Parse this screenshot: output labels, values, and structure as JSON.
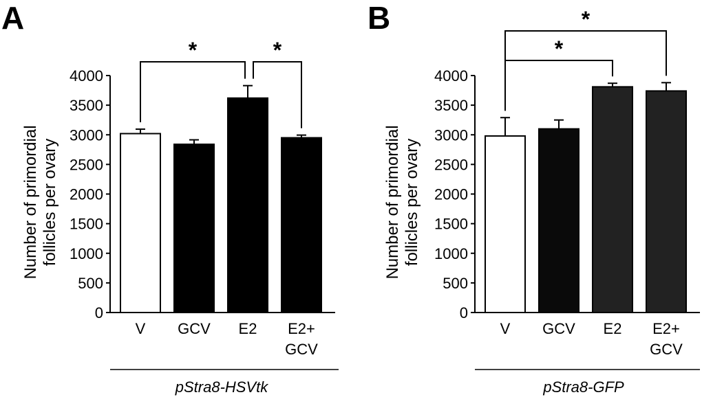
{
  "chart_data": [
    {
      "type": "bar",
      "panel": "A",
      "ylabel": [
        "Number of primordial",
        "follicles per ovary"
      ],
      "ylim": [
        0,
        4000
      ],
      "yticks": [
        0,
        500,
        1000,
        1500,
        2000,
        2500,
        3000,
        3500,
        4000
      ],
      "categories": [
        {
          "label": [
            "V"
          ],
          "value": 3020,
          "error": 75,
          "color": "#ffffff"
        },
        {
          "label": [
            "GCV"
          ],
          "value": 2840,
          "error": 75,
          "color": "#000000"
        },
        {
          "label": [
            "E2"
          ],
          "value": 3620,
          "error": 210,
          "color": "#000000"
        },
        {
          "label": [
            "E2+",
            "GCV"
          ],
          "value": 2950,
          "error": 45,
          "color": "#000000"
        }
      ],
      "genotype": "pStra8-HSVtk",
      "significance": [
        {
          "from": 0,
          "to": 2,
          "label": "*"
        },
        {
          "from": 2,
          "to": 3,
          "label": "*"
        }
      ]
    },
    {
      "type": "bar",
      "panel": "B",
      "ylabel": [
        "Number of primordial",
        "follicles per ovary"
      ],
      "ylim": [
        0,
        4000
      ],
      "yticks": [
        0,
        500,
        1000,
        1500,
        2000,
        2500,
        3000,
        3500,
        4000
      ],
      "categories": [
        {
          "label": [
            "V"
          ],
          "value": 2980,
          "error": 310,
          "color": "#ffffff"
        },
        {
          "label": [
            "GCV"
          ],
          "value": 3100,
          "error": 150,
          "color": "#0a0a0a"
        },
        {
          "label": [
            "E2"
          ],
          "value": 3810,
          "error": 60,
          "color": "#222222"
        },
        {
          "label": [
            "E2+",
            "GCV"
          ],
          "value": 3740,
          "error": 140,
          "color": "#222222"
        }
      ],
      "genotype": "pStra8-GFP",
      "significance": [
        {
          "from": 0,
          "to": 2,
          "label": "*"
        },
        {
          "from": 0,
          "to": 3,
          "label": "*"
        }
      ]
    }
  ]
}
